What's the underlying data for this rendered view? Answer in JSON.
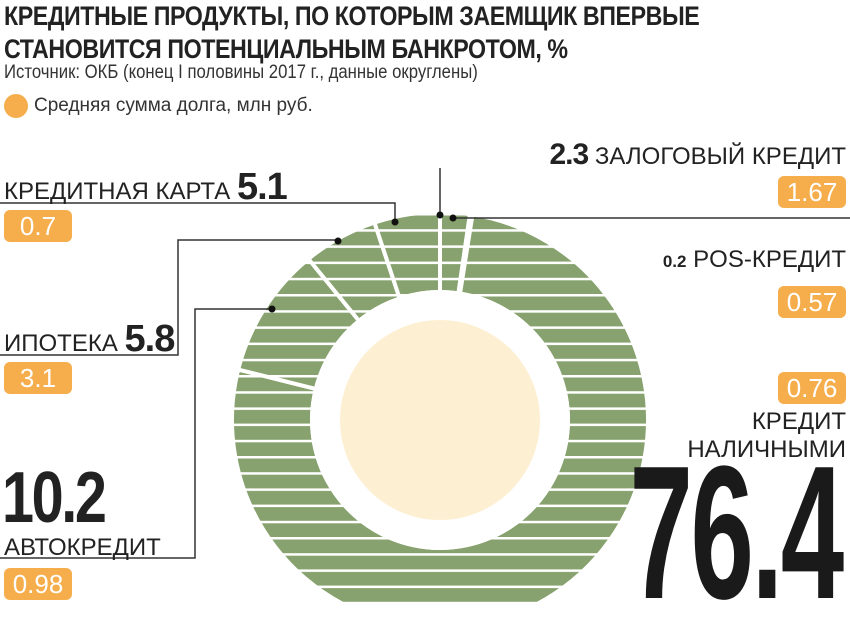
{
  "title_line1": "КРЕДИТНЫЕ ПРОДУКТЫ, ПО КОТОРЫМ ЗАЕМЩИК ВПЕРВЫЕ",
  "title_line2": "СТАНОВИТСЯ ПОТЕНЦИАЛЬНЫМ БАНКРОТОМ, %",
  "source": "Источник: ОКБ (конец I половины 2017 г., данные округлены)",
  "legend": "Средняя сумма долга, млн руб.",
  "colors": {
    "segment": "#87a26e",
    "badge": "#f6ad4b",
    "center": "#fdf0d2"
  },
  "chart_data": {
    "type": "pie",
    "title": "Кредитные продукты, по которым заемщик впервые становится потенциальным банкротом, %",
    "unit": "%",
    "secondary_label": "Средняя сумма долга, млн руб.",
    "slices": [
      {
        "name": "ЗАЛОГОВЫЙ КРЕДИТ",
        "value": 2.3,
        "value_label": "2.3",
        "avg_debt": "1.67"
      },
      {
        "name": "POS-КРЕДИТ",
        "value": 0.2,
        "value_label": "0.2",
        "avg_debt": "0.57"
      },
      {
        "name_line1": "КРЕДИТ",
        "name_line2": "НАЛИЧНЫМИ",
        "name": "КРЕДИТ НАЛИЧНЫМИ",
        "value": 76.4,
        "value_label": "76.4",
        "avg_debt": "0.76"
      },
      {
        "name": "АВТОКРЕДИТ",
        "value": 10.2,
        "value_label": "10.2",
        "avg_debt": "0.98"
      },
      {
        "name": "ИПОТЕКА",
        "value": 5.8,
        "value_label": "5.8",
        "avg_debt": "3.1"
      },
      {
        "name": "КРЕДИТНАЯ КАРТА",
        "value": 5.1,
        "value_label": "5.1",
        "avg_debt": "0.7"
      }
    ]
  }
}
